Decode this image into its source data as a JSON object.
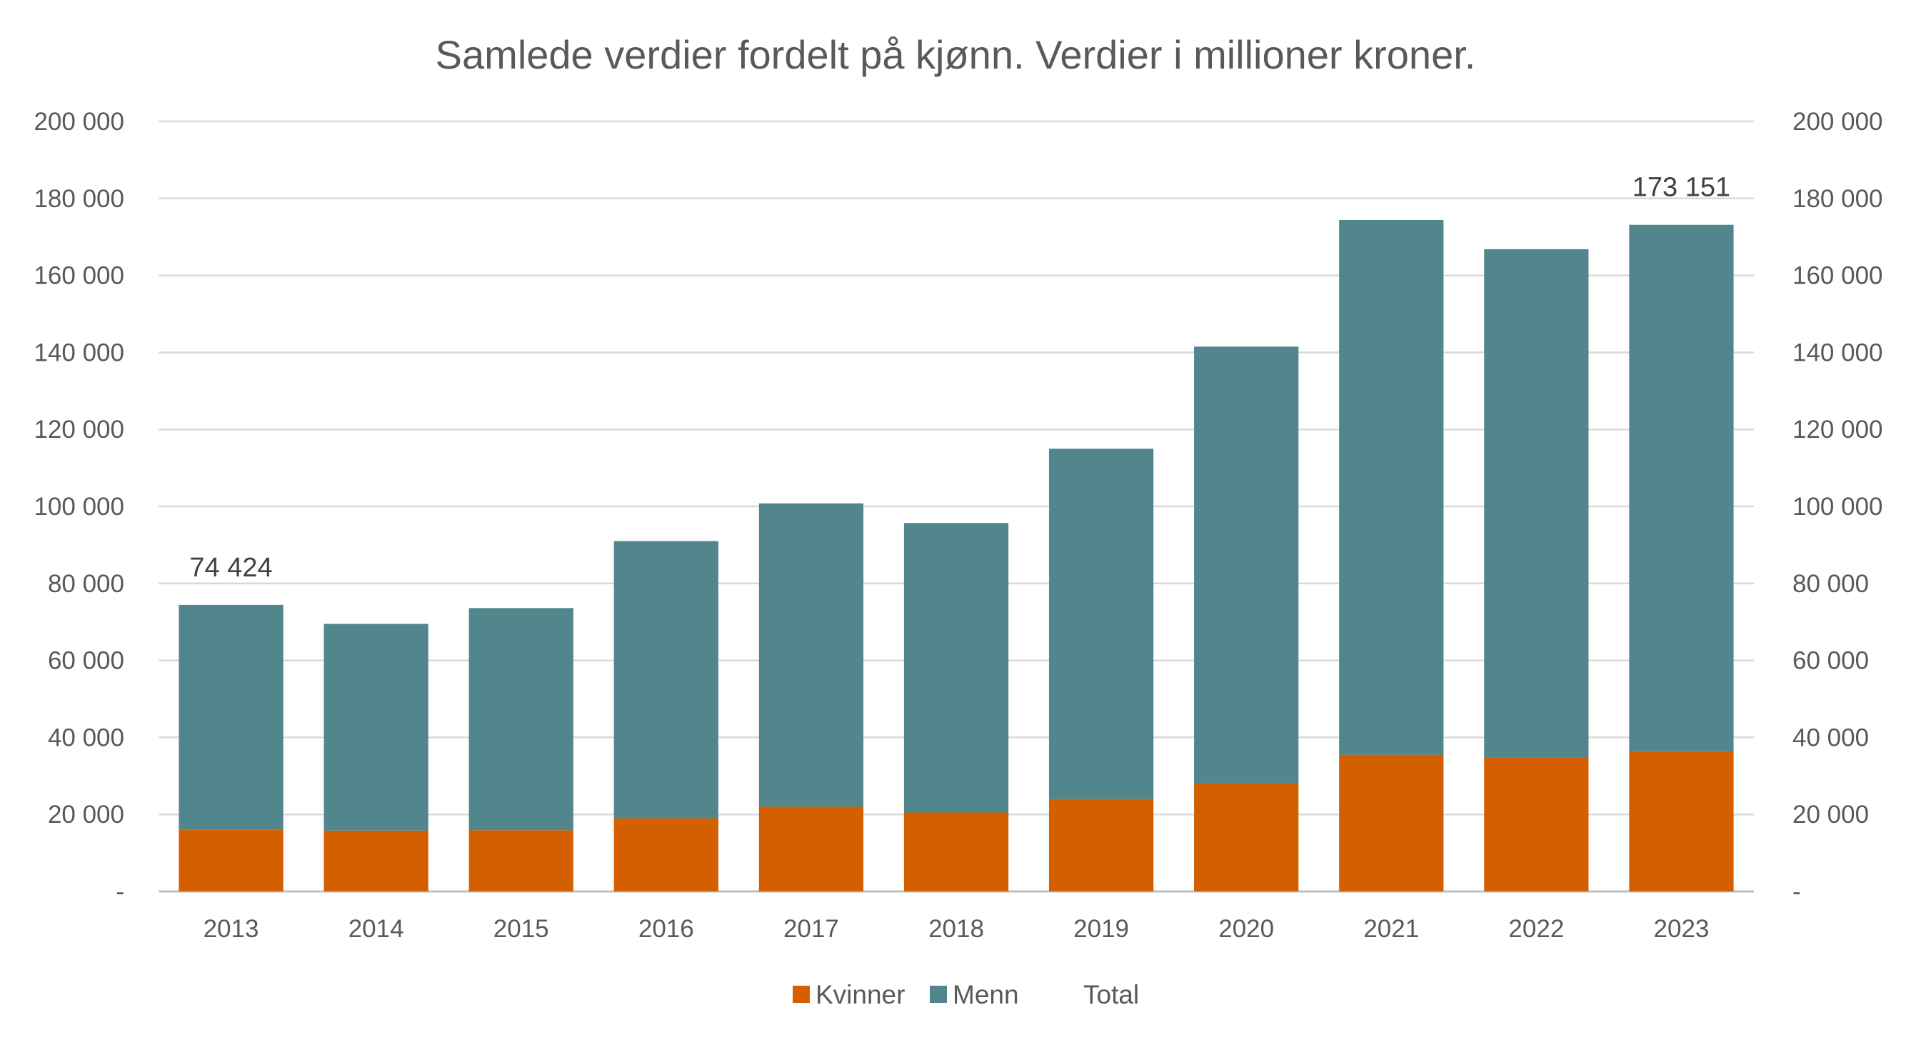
{
  "chart_data": {
    "type": "bar",
    "stacked": true,
    "title": "Samlede verdier fordelt på kjønn. Verdier i millioner kroner.",
    "categories": [
      "2013",
      "2014",
      "2015",
      "2016",
      "2017",
      "2018",
      "2019",
      "2020",
      "2021",
      "2022",
      "2023"
    ],
    "series": [
      {
        "name": "Kvinner",
        "color": "#D35F00",
        "values": [
          16000,
          15800,
          15900,
          19000,
          22000,
          20500,
          24000,
          28000,
          35500,
          34800,
          36200
        ]
      },
      {
        "name": "Menn",
        "color": "#51868C",
        "values": [
          58424,
          53700,
          57700,
          72000,
          78800,
          75200,
          91000,
          113500,
          138900,
          132000,
          136951
        ]
      },
      {
        "name": "Total",
        "color": "none",
        "values": [
          74424,
          69500,
          73600,
          91000,
          100800,
          95700,
          115000,
          141500,
          174400,
          166800,
          173151
        ]
      }
    ],
    "data_labels": [
      {
        "category": "2013",
        "text": "74 424"
      },
      {
        "category": "2023",
        "text": "173 151"
      }
    ],
    "ylim": [
      0,
      200000
    ],
    "y_ticks": [
      "-",
      "20 000",
      "40 000",
      "60 000",
      "80 000",
      "100 000",
      "120 000",
      "140 000",
      "160 000",
      "180 000",
      "200 000"
    ],
    "y_tick_values": [
      0,
      20000,
      40000,
      60000,
      80000,
      100000,
      120000,
      140000,
      160000,
      180000,
      200000
    ],
    "secondary_y_axis": true,
    "grid": true,
    "legend_position": "bottom",
    "xlabel": "",
    "ylabel": ""
  }
}
